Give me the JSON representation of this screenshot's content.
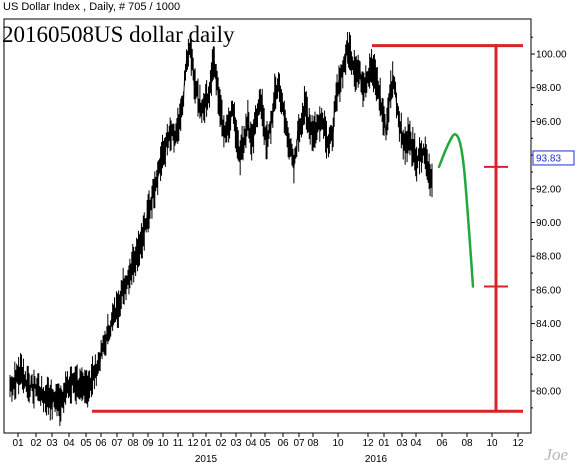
{
  "header": {
    "text": "US Dollar Index , Daily, # 705 / 1000",
    "watermark": "20160508US dollar daily",
    "signature": "Joe"
  },
  "colors": {
    "price": "#000000",
    "annotation": "#d8232a",
    "projection": "#1fa83c",
    "current_label": "#1a2fd6"
  },
  "chart_data": {
    "type": "line",
    "title": "",
    "xlabel": "",
    "ylabel": "",
    "ylim": [
      78.4,
      101.2
    ],
    "y_ticks": [
      80.0,
      82.0,
      84.0,
      86.0,
      88.0,
      90.0,
      92.0,
      94.0,
      96.0,
      98.0,
      100.0
    ],
    "y_tick_labels": [
      "80.00",
      "82.00",
      "84.00",
      "86.00",
      "88.00",
      "90.00",
      "92.00",
      "94.00",
      "96.00",
      "98.00",
      "100.00"
    ],
    "x_month_labels": [
      "01",
      "02",
      "03",
      "04",
      "05",
      "06",
      "07",
      "08",
      "09",
      "10",
      "11",
      "12",
      "01",
      "02",
      "03",
      "04",
      "05",
      "06",
      "07",
      "08",
      "10",
      "12",
      "01",
      "03",
      "04",
      "06",
      "08",
      "10",
      "12"
    ],
    "x_year_labels": [
      "2015",
      "2016"
    ],
    "current_value": 93.83,
    "current_value_label": "93.83",
    "series": [
      {
        "values": [
          80.3,
          80.5,
          80.9,
          81.2,
          80.6,
          80.4,
          80.1,
          80.3,
          79.9,
          79.6,
          79.8,
          79.4,
          79.6,
          79.3,
          79.9,
          80.2,
          80.4,
          80.6,
          80.3,
          80.0,
          80.2,
          80.6,
          81.0,
          81.6,
          82.4,
          83.0,
          83.8,
          84.4,
          85.0,
          85.7,
          86.3,
          86.9,
          87.6,
          88.2,
          88.8,
          89.5,
          90.4,
          91.5,
          92.5,
          93.4,
          94.1,
          94.8,
          95.2,
          95.0,
          95.6,
          97.0,
          99.5,
          100.3,
          98.5,
          97.3,
          96.8,
          97.2,
          97.8,
          99.6,
          98.2,
          96.4,
          95.4,
          95.9,
          96.8,
          95.2,
          94.1,
          94.9,
          96.2,
          94.5,
          95.9,
          97.4,
          96.2,
          94.6,
          95.8,
          97.4,
          98.3,
          96.9,
          95.6,
          94.5,
          93.2,
          95.2,
          96.1,
          96.8,
          95.9,
          95.3,
          95.6,
          96.3,
          95.8,
          94.6,
          95.2,
          97.2,
          98.5,
          99.3,
          100.3,
          99.8,
          99.1,
          98.9,
          98.2,
          98.6,
          99.2,
          98.7,
          97.9,
          96.6,
          95.5,
          97.5,
          98.6,
          96.8,
          95.3,
          94.6,
          95.1,
          94.2,
          93.6,
          93.9,
          94.2,
          93.1,
          92.5
        ]
      }
    ],
    "annotations": {
      "top_level": 100.5,
      "bottom_level": 78.8,
      "bracket_marks": [
        93.3,
        86.2
      ],
      "projection_curve": [
        {
          "t": 0.0,
          "y": 93.3
        },
        {
          "t": 0.25,
          "y": 94.6
        },
        {
          "t": 0.5,
          "y": 95.5
        },
        {
          "t": 0.7,
          "y": 94.2
        },
        {
          "t": 0.85,
          "y": 90.5
        },
        {
          "t": 1.0,
          "y": 86.2
        }
      ]
    }
  }
}
